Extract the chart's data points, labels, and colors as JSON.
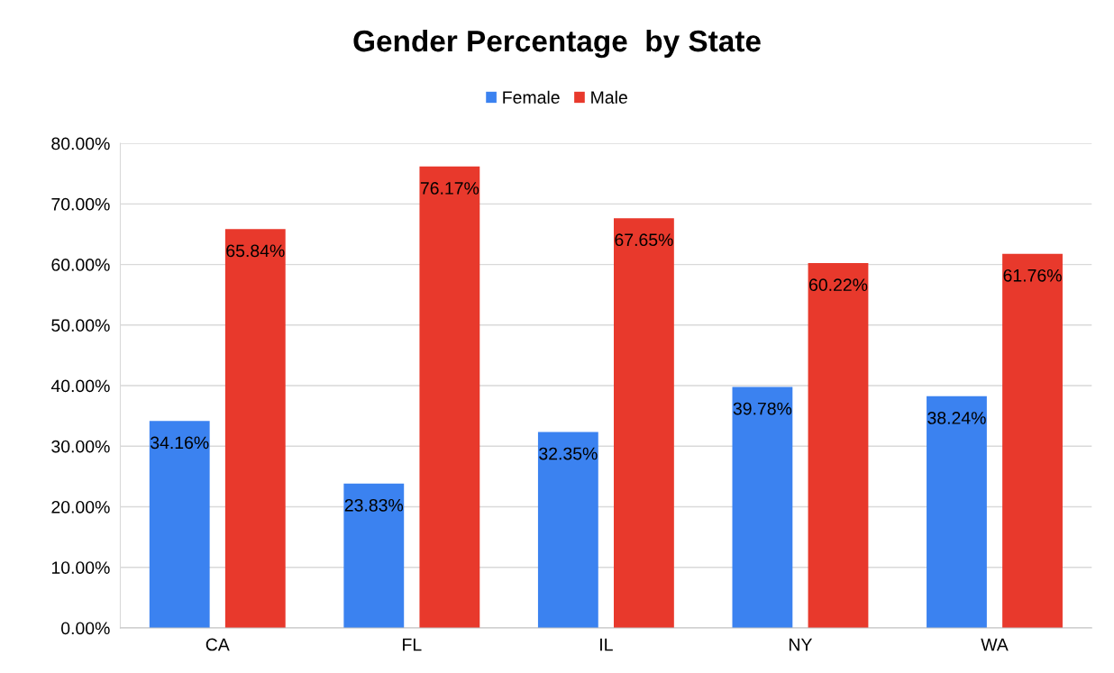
{
  "chart_data": {
    "type": "bar",
    "title": "Gender Percentage  by State",
    "categories": [
      "CA",
      "FL",
      "IL",
      "NY",
      "WA"
    ],
    "series": [
      {
        "name": "Female",
        "color": "#3b82f0",
        "values": [
          34.16,
          23.83,
          32.35,
          39.78,
          38.24
        ],
        "value_labels": [
          "34.16%",
          "23.83%",
          "32.35%",
          "39.78%",
          "38.24%"
        ]
      },
      {
        "name": "Male",
        "color": "#e8392c",
        "values": [
          65.84,
          76.17,
          67.65,
          60.22,
          61.76
        ],
        "value_labels": [
          "65.84%",
          "76.17%",
          "67.65%",
          "60.22%",
          "61.76%"
        ]
      }
    ],
    "ylim": [
      0,
      80
    ],
    "yticks": [
      {
        "value": 0,
        "label": "0.00%"
      },
      {
        "value": 10,
        "label": "10.00%"
      },
      {
        "value": 20,
        "label": "20.00%"
      },
      {
        "value": 30,
        "label": "30.00%"
      },
      {
        "value": 40,
        "label": "40.00%"
      },
      {
        "value": 50,
        "label": "50.00%"
      },
      {
        "value": 60,
        "label": "60.00%"
      },
      {
        "value": 70,
        "label": "70.00%"
      },
      {
        "value": 80,
        "label": "80.00%"
      }
    ],
    "grid": "y",
    "legend": "top"
  }
}
